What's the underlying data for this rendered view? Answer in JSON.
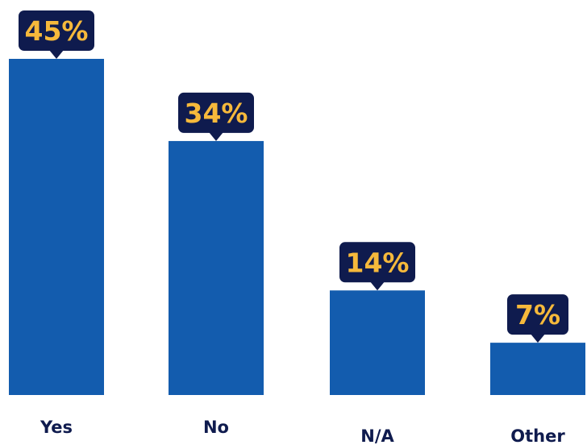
{
  "chart_data": {
    "type": "bar",
    "categories": [
      "Yes",
      "No",
      "N/A",
      "Other"
    ],
    "values": [
      45,
      34,
      14,
      7
    ],
    "value_labels": [
      "45%",
      "34%",
      "14%",
      "7%"
    ],
    "unit": "%",
    "ylim": [
      0,
      45
    ],
    "grid": false,
    "legend": "none",
    "title": "",
    "xlabel": "",
    "ylabel": ""
  },
  "colors": {
    "bar": "#135CAE",
    "callout_background": "#0F1B4E",
    "callout_text": "#F6B93B",
    "category_text": "#0F1B4E"
  }
}
